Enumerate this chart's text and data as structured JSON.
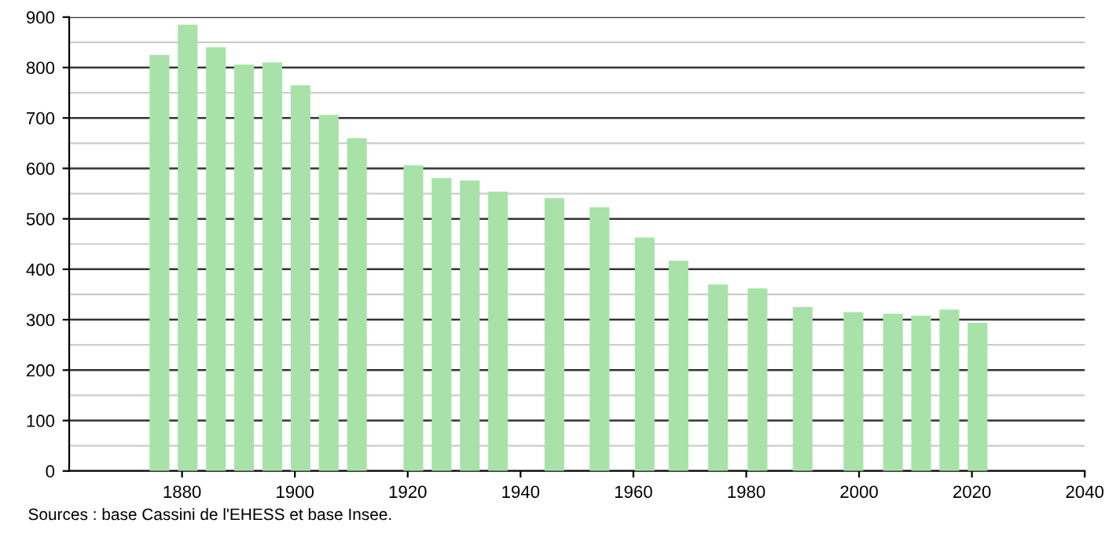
{
  "chart_data": {
    "type": "bar",
    "x": [
      1876,
      1881,
      1886,
      1891,
      1896,
      1901,
      1906,
      1911,
      1921,
      1926,
      1931,
      1936,
      1946,
      1954,
      1962,
      1968,
      1975,
      1982,
      1990,
      1999,
      2006,
      2011,
      2016,
      2021
    ],
    "values": [
      825,
      885,
      840,
      806,
      810,
      765,
      706,
      660,
      606,
      581,
      576,
      554,
      541,
      523,
      463,
      417,
      370,
      362,
      325,
      315,
      312,
      308,
      320,
      294
    ],
    "color": "#a8e2a8",
    "xlim": [
      1860,
      2040
    ],
    "xticks": [
      1880,
      1900,
      1920,
      1940,
      1960,
      1980,
      2000,
      2020,
      2040
    ],
    "ylim": [
      0,
      900
    ],
    "yticks": [
      0,
      100,
      200,
      300,
      400,
      500,
      600,
      700,
      800,
      900
    ],
    "grid": "y",
    "annotations": [
      "Sources : base Cassini de l'EHESS et base Insee."
    ]
  }
}
